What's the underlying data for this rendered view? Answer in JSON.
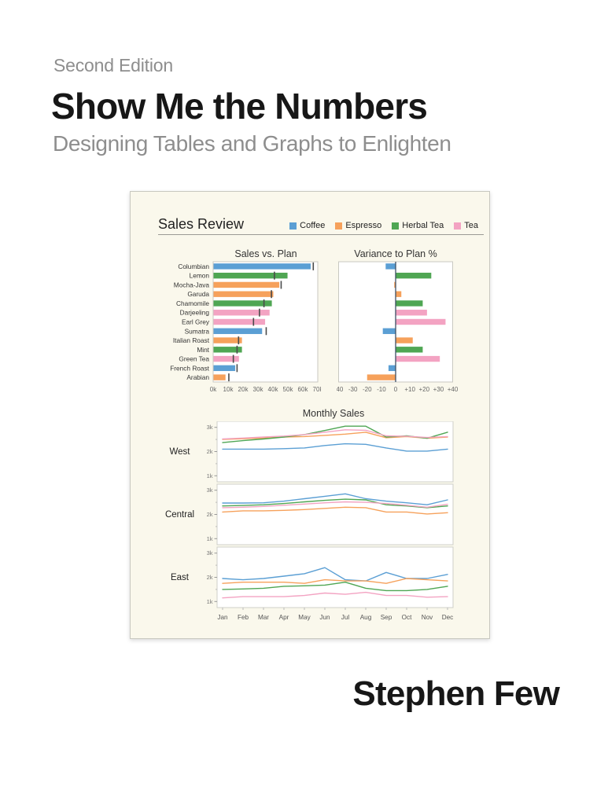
{
  "cover": {
    "edition": "Second Edition",
    "title": "Show Me the Numbers",
    "subtitle": "Designing Tables and Graphs to Enlighten",
    "author": "Stephen Few"
  },
  "palette": {
    "coffee_blue": "#5B9FD4",
    "espresso_orange": "#F6A15B",
    "herbal_tea_green": "#4FA653",
    "tea_pink": "#F3A3C2",
    "plan_marker_gray": "#4a4a4a",
    "zero_axis": "#3d4f63",
    "panel_bg": "#faf8ec",
    "chart_border": "#c9c9c2",
    "text_dark": "#333333",
    "text_muted": "#8e8e8e"
  },
  "dashboard": {
    "title": "Sales Review",
    "legend": [
      {
        "label": "Coffee",
        "color_key": "coffee_blue"
      },
      {
        "label": "Espresso",
        "color_key": "espresso_orange"
      },
      {
        "label": "Herbal Tea",
        "color_key": "herbal_tea_green"
      },
      {
        "label": "Tea",
        "color_key": "tea_pink"
      }
    ]
  },
  "chart_data": [
    {
      "type": "bar",
      "orientation": "horizontal",
      "title": "Sales vs. Plan",
      "categories": [
        "Columbian",
        "Lemon",
        "Mocha-Java",
        "Garuda",
        "Chamomile",
        "Darjeeling",
        "Earl Grey",
        "Sumatra",
        "Italian Roast",
        "Mint",
        "Green Tea",
        "French Roast",
        "Arabian"
      ],
      "series_of_category": [
        "Coffee",
        "Herbal Tea",
        "Espresso",
        "Espresso",
        "Herbal Tea",
        "Tea",
        "Tea",
        "Coffee",
        "Espresso",
        "Herbal Tea",
        "Tea",
        "Coffee",
        "Espresso"
      ],
      "sales": [
        65000,
        49500,
        44000,
        40000,
        39000,
        37500,
        34500,
        32500,
        19000,
        19000,
        17000,
        14500,
        8000
      ],
      "plan": [
        67000,
        41000,
        45500,
        39000,
        34000,
        31000,
        27000,
        35500,
        17000,
        16000,
        13500,
        16000,
        10500
      ],
      "xlim": [
        0,
        70000
      ],
      "x_ticks": [
        "0k",
        "10k",
        "20k",
        "30k",
        "40k",
        "50k",
        "60k",
        "70k"
      ],
      "grid": false
    },
    {
      "type": "bar",
      "orientation": "horizontal",
      "title": "Variance to Plan %",
      "categories": [
        "Columbian",
        "Lemon",
        "Mocha-Java",
        "Garuda",
        "Chamomile",
        "Darjeeling",
        "Earl Grey",
        "Sumatra",
        "Italian Roast",
        "Mint",
        "Green Tea",
        "French Roast",
        "Arabian"
      ],
      "series_of_category": [
        "Coffee",
        "Herbal Tea",
        "Espresso",
        "Espresso",
        "Herbal Tea",
        "Tea",
        "Tea",
        "Coffee",
        "Espresso",
        "Herbal Tea",
        "Tea",
        "Coffee",
        "Espresso"
      ],
      "values": [
        -7,
        25,
        -1,
        4,
        19,
        22,
        35,
        -9,
        12,
        19,
        31,
        -5,
        -20
      ],
      "xlim": [
        -40,
        40
      ],
      "x_ticks": [
        "-40",
        "-30",
        "-20",
        "-10",
        "0",
        "+10",
        "+20",
        "+30",
        "+40"
      ],
      "grid": false
    },
    {
      "type": "line",
      "title": "Monthly Sales",
      "x": [
        "Jan",
        "Feb",
        "Mar",
        "Apr",
        "May",
        "Jun",
        "Jul",
        "Aug",
        "Sep",
        "Oct",
        "Nov",
        "Dec"
      ],
      "ylim": [
        750,
        3250
      ],
      "y_ticks": [
        "1k",
        "2k",
        "3k"
      ],
      "panels": [
        {
          "region": "West",
          "series": [
            {
              "name": "Coffee",
              "values": [
                2100,
                2100,
                2100,
                2120,
                2150,
                2250,
                2320,
                2300,
                2150,
                2020,
                2020,
                2100
              ]
            },
            {
              "name": "Espresso",
              "values": [
                2500,
                2530,
                2560,
                2600,
                2620,
                2670,
                2720,
                2800,
                2570,
                2620,
                2550,
                2600
              ]
            },
            {
              "name": "Herbal Tea",
              "values": [
                2370,
                2450,
                2520,
                2600,
                2700,
                2870,
                3050,
                3050,
                2600,
                2650,
                2550,
                2800
              ]
            },
            {
              "name": "Tea",
              "values": [
                2520,
                2560,
                2600,
                2640,
                2700,
                2800,
                2900,
                2880,
                2650,
                2630,
                2580,
                2620
              ]
            }
          ]
        },
        {
          "region": "Central",
          "series": [
            {
              "name": "Coffee",
              "values": [
                2470,
                2470,
                2480,
                2550,
                2650,
                2750,
                2850,
                2650,
                2550,
                2480,
                2400,
                2600
              ]
            },
            {
              "name": "Espresso",
              "values": [
                2100,
                2150,
                2150,
                2170,
                2200,
                2250,
                2300,
                2280,
                2100,
                2100,
                2020,
                2070
              ]
            },
            {
              "name": "Herbal Tea",
              "values": [
                2350,
                2370,
                2400,
                2450,
                2520,
                2580,
                2630,
                2600,
                2400,
                2350,
                2280,
                2350
              ]
            },
            {
              "name": "Tea",
              "values": [
                2280,
                2300,
                2330,
                2380,
                2430,
                2480,
                2520,
                2500,
                2450,
                2380,
                2300,
                2420
              ]
            }
          ]
        },
        {
          "region": "East",
          "series": [
            {
              "name": "Coffee",
              "values": [
                1950,
                1900,
                1950,
                2050,
                2150,
                2400,
                1900,
                1850,
                2200,
                1950,
                1950,
                2120
              ]
            },
            {
              "name": "Espresso",
              "values": [
                1750,
                1800,
                1800,
                1800,
                1750,
                1900,
                1850,
                1850,
                1750,
                1950,
                1900,
                1850
              ]
            },
            {
              "name": "Herbal Tea",
              "values": [
                1500,
                1520,
                1550,
                1630,
                1650,
                1680,
                1800,
                1550,
                1450,
                1450,
                1500,
                1630
              ]
            },
            {
              "name": "Tea",
              "values": [
                1150,
                1200,
                1200,
                1200,
                1250,
                1350,
                1300,
                1380,
                1250,
                1250,
                1180,
                1200
              ]
            }
          ]
        }
      ]
    }
  ]
}
